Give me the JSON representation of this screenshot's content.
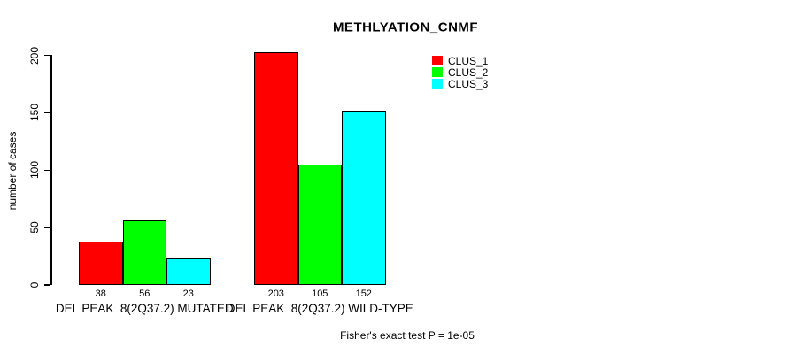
{
  "page": {
    "background": "#ffffff",
    "text_color": "#000000"
  },
  "chart_data": {
    "type": "bar",
    "title": "METHLYATION_CNMF",
    "ylabel": "number of cases",
    "xlabel": "",
    "ylim": [
      0,
      200
    ],
    "yticks": [
      0,
      50,
      100,
      150,
      200
    ],
    "grid": false,
    "legend_position": "top-right",
    "categories": [
      "DEL PEAK  8(2Q37.2) MUTATED",
      "DEL PEAK  8(2Q37.2) WILD-TYPE"
    ],
    "series": [
      {
        "name": "CLUS_1",
        "color": "#ff0000",
        "values": [
          38,
          203
        ]
      },
      {
        "name": "CLUS_2",
        "color": "#00ff00",
        "values": [
          56,
          105
        ]
      },
      {
        "name": "CLUS_3",
        "color": "#00ffff",
        "values": [
          23,
          152
        ]
      }
    ],
    "bar_value_labels": [
      [
        "38",
        "56",
        "23"
      ],
      [
        "203",
        "105",
        "152"
      ]
    ],
    "annotation": "Fisher's exact test P = 1e-05",
    "axis_color": "#000000",
    "bar_border_color": "#000000"
  }
}
